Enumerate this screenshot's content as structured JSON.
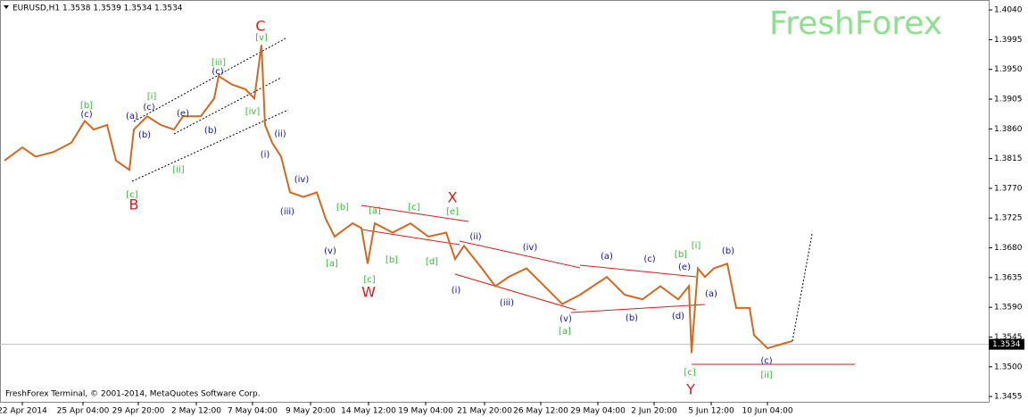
{
  "chart_data": {
    "type": "line",
    "header": "EURUSD,H1  1.3538 1.3539 1.3534 1.3534",
    "watermark": "FreshForex",
    "footer": "FreshForex Terminal, © 2001-2014, MetaQuotes Software Corp.",
    "current_price": 1.3534,
    "xlim": [
      0,
      1108
    ],
    "ylim": [
      1.3447,
      1.4055
    ],
    "yticks": [
      {
        "value": 1.404,
        "label": "1.4040"
      },
      {
        "value": 1.3995,
        "label": "1.3995"
      },
      {
        "value": 1.395,
        "label": "1.3950"
      },
      {
        "value": 1.3905,
        "label": "1.3905"
      },
      {
        "value": 1.386,
        "label": "1.3860"
      },
      {
        "value": 1.3815,
        "label": "1.3815"
      },
      {
        "value": 1.377,
        "label": "1.3770"
      },
      {
        "value": 1.3725,
        "label": "1.3725"
      },
      {
        "value": 1.368,
        "label": "1.3680"
      },
      {
        "value": 1.3635,
        "label": "1.3635"
      },
      {
        "value": 1.359,
        "label": "1.3590"
      },
      {
        "value": 1.3545,
        "label": "1.3545"
      },
      {
        "value": 1.35,
        "label": "1.3500"
      },
      {
        "value": 1.3455,
        "label": "1.3455"
      }
    ],
    "xticks": [
      {
        "value": 25,
        "label": "22 Apr 2014"
      },
      {
        "value": 93,
        "label": "25 Apr 04:00"
      },
      {
        "value": 155,
        "label": "29 Apr 20:00"
      },
      {
        "value": 220,
        "label": "2 May 12:00"
      },
      {
        "value": 283,
        "label": "7 May 04:00"
      },
      {
        "value": 348,
        "label": "9 May 20:00"
      },
      {
        "value": 413,
        "label": "14 May 12:00"
      },
      {
        "value": 477,
        "label": "19 May 04:00"
      },
      {
        "value": 543,
        "label": "21 May 20:00"
      },
      {
        "value": 606,
        "label": "26 May 12:00"
      },
      {
        "value": 670,
        "label": "29 May 04:00"
      },
      {
        "value": 733,
        "label": "2 Jun 20:00"
      },
      {
        "value": 797,
        "label": "5 Jun 12:00"
      },
      {
        "value": 860,
        "label": "10 Jun 04:00"
      }
    ],
    "series": [
      {
        "name": "EURUSD,H1",
        "color": "#d2691e",
        "x": [
          5,
          25,
          40,
          60,
          80,
          95,
          105,
          120,
          130,
          145,
          150,
          165,
          180,
          195,
          205,
          225,
          240,
          245,
          260,
          275,
          285,
          293,
          297,
          305,
          315,
          325,
          340,
          355,
          365,
          375,
          395,
          405,
          412,
          420,
          440,
          460,
          480,
          500,
          510,
          520,
          540,
          555,
          570,
          590,
          610,
          630,
          650,
          680,
          700,
          720,
          740,
          760,
          772,
          775,
          782,
          790,
          800,
          815,
          825,
          840,
          845,
          860,
          875,
          888
        ],
        "values": [
          1.3812,
          1.3832,
          1.3818,
          1.3825,
          1.3839,
          1.3872,
          1.3859,
          1.3866,
          1.3812,
          1.3798,
          1.3859,
          1.3879,
          1.3866,
          1.3859,
          1.3879,
          1.3879,
          1.3906,
          1.394,
          1.3927,
          1.392,
          1.3906,
          1.3987,
          1.3866,
          1.3839,
          1.3818,
          1.3764,
          1.3757,
          1.3764,
          1.3724,
          1.3697,
          1.3717,
          1.371,
          1.3656,
          1.3717,
          1.3703,
          1.3717,
          1.3697,
          1.3703,
          1.3663,
          1.3683,
          1.3649,
          1.3622,
          1.3636,
          1.3649,
          1.3622,
          1.3595,
          1.3609,
          1.3636,
          1.3609,
          1.3602,
          1.3622,
          1.3602,
          1.3622,
          1.3521,
          1.3649,
          1.3636,
          1.3649,
          1.3656,
          1.3589,
          1.3589,
          1.3548,
          1.3528,
          1.3534,
          1.3539
        ]
      }
    ],
    "annotations": [
      "C",
      "B",
      "X",
      "W",
      "Y",
      "[b]",
      "[i]",
      "[iii]",
      "[v]",
      "[iv]",
      "[ii]",
      "[c]",
      "[b]",
      "[a]",
      "[c]",
      "[e]",
      "[a]",
      "[b]",
      "[d]",
      "[c]",
      "[a]",
      "[b]",
      "[i]",
      "[c]",
      "[ii]",
      "(c)",
      "(a)",
      "(c)",
      "(e)",
      "(b)",
      "(b)",
      "(c)",
      "(ii)",
      "(i)",
      "(iv)",
      "(iii)",
      "(v)",
      "(ii)",
      "(i)",
      "(iv)",
      "(iii)",
      "(v)",
      "(a)",
      "(c)",
      "(b)",
      "(d)",
      "(e)",
      "(b)",
      "(a)",
      "(c)"
    ]
  }
}
